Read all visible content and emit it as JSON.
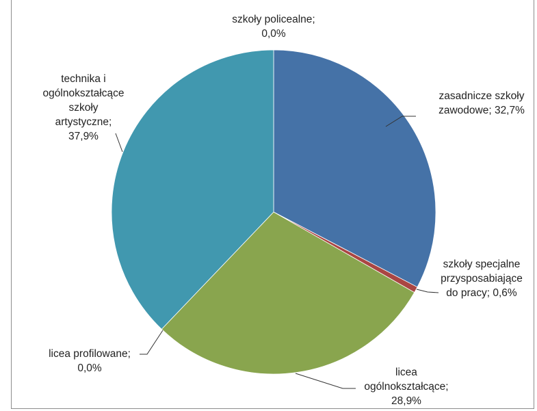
{
  "chart_data": {
    "type": "pie",
    "title": "",
    "slices": [
      {
        "name": "zasadnicze szkoły zawodowe",
        "value": 32.7,
        "color": "#4572A7",
        "label_lines": [
          "zasadnicze szkoły",
          "zawodowe; 32,7%"
        ]
      },
      {
        "name": "szkoły specjalne przysposabiające do pracy",
        "value": 0.6,
        "color": "#AA4643",
        "label_lines": [
          "szkoły specjalne",
          "przysposabiające",
          "do pracy; 0,6%"
        ]
      },
      {
        "name": "licea ogólnokształcące",
        "value": 28.9,
        "color": "#89A54E",
        "label_lines": [
          "licea",
          "ogólnokształcące;",
          "28,9%"
        ]
      },
      {
        "name": "licea profilowane",
        "value": 0.0,
        "color": "#80699B",
        "label_lines": [
          "licea profilowane;",
          "0,0%"
        ]
      },
      {
        "name": "technika i ogólnokształcące szkoły artystyczne",
        "value": 37.9,
        "color": "#4198AF",
        "label_lines": [
          "technika i",
          "ogólnokształcące",
          "szkoły",
          "artystyczne;",
          "37,9%"
        ]
      },
      {
        "name": "szkoły policealne",
        "value": 0.0,
        "color": "#DB843D",
        "label_lines": [
          "szkoły policealne;",
          "0,0%"
        ]
      }
    ],
    "start_angle_deg": 0,
    "direction": "clockwise",
    "legend": "none",
    "data_labels": "category; percent"
  }
}
